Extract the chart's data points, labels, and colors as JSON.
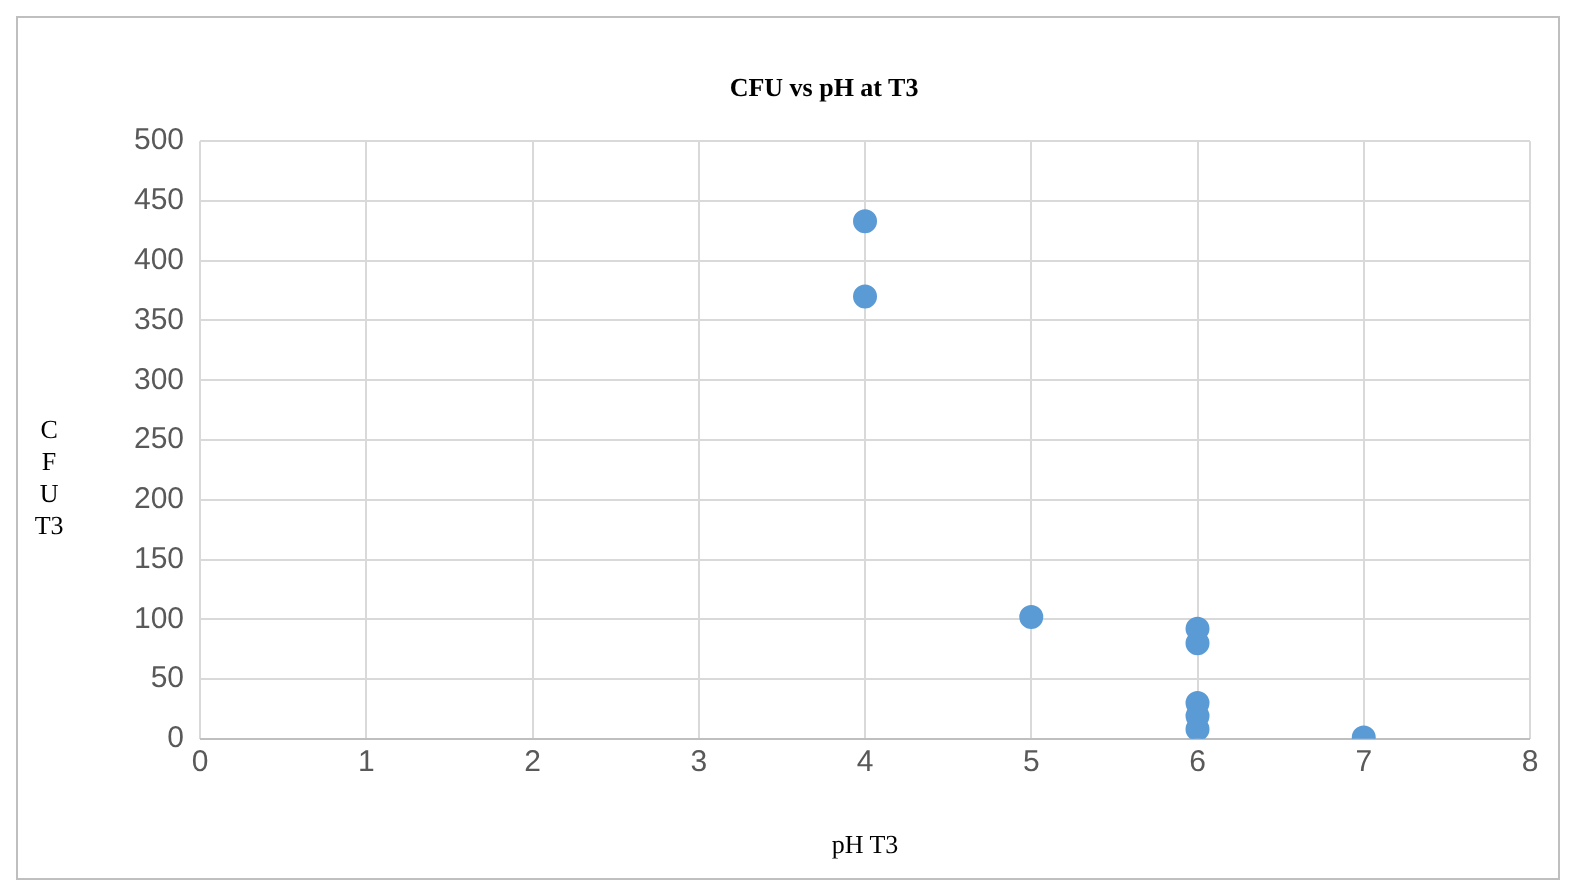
{
  "chart_data": {
    "type": "scatter",
    "title": "CFU vs pH at T3",
    "xlabel": "pH T3",
    "ylabel": "CFU T3",
    "x": [
      4,
      4,
      5,
      6,
      6,
      6,
      6,
      6,
      7
    ],
    "values": [
      433,
      370,
      102,
      92,
      80,
      30,
      19,
      8,
      1
    ],
    "color": "#5b9bd5",
    "marker": "circle",
    "xlim": [
      0,
      8
    ],
    "xticks": [
      0,
      1,
      2,
      3,
      4,
      5,
      6,
      7,
      8
    ],
    "ylim": [
      0,
      500
    ],
    "yticks": [
      0,
      50,
      100,
      150,
      200,
      250,
      300,
      350,
      400,
      450,
      500
    ],
    "grid": true,
    "legend": false
  }
}
